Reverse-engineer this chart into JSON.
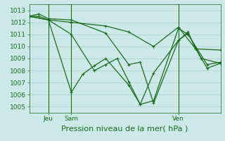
{
  "title": "Pression niveau de la mer( hPa )",
  "bg_color": "#cce8e8",
  "line_color": "#1a6b1a",
  "grid_color": "#aacccc",
  "ylim": [
    1004.5,
    1013.5
  ],
  "yticks": [
    1005,
    1006,
    1007,
    1008,
    1009,
    1010,
    1011,
    1012,
    1013
  ],
  "xlim": [
    0,
    100
  ],
  "vline_jeu": 10,
  "vline_sam": 22,
  "vline_ven": 78,
  "x_label_jeu": 10,
  "x_label_sam": 22,
  "x_label_ven": 78,
  "line1_x": [
    0,
    5,
    10,
    22,
    40,
    52,
    58,
    65,
    78,
    83,
    87,
    93,
    100
  ],
  "line1_y": [
    1012.5,
    1012.7,
    1012.3,
    1012.2,
    1011.1,
    1008.5,
    1008.7,
    1005.3,
    1010.5,
    1011.2,
    1009.8,
    1008.2,
    1008.6
  ],
  "line2_x": [
    0,
    10,
    22,
    34,
    40,
    46,
    52,
    58,
    65,
    78,
    83,
    93,
    100
  ],
  "line2_y": [
    1012.5,
    1012.2,
    1011.0,
    1008.0,
    1008.5,
    1009.0,
    1007.1,
    1005.2,
    1005.5,
    1011.5,
    1011.0,
    1008.5,
    1008.7
  ],
  "line3_x": [
    0,
    5,
    10,
    22,
    40,
    52,
    65,
    78,
    87,
    100
  ],
  "line3_y": [
    1012.5,
    1012.5,
    1012.2,
    1012.0,
    1011.7,
    1011.2,
    1010.0,
    1011.6,
    1009.8,
    1009.7
  ],
  "line4_x": [
    0,
    10,
    22,
    28,
    34,
    40,
    52,
    58,
    65,
    78,
    83,
    90,
    100
  ],
  "line4_y": [
    1012.5,
    1012.2,
    1006.2,
    1007.7,
    1008.4,
    1009.0,
    1006.8,
    1005.2,
    1007.8,
    1010.5,
    1011.1,
    1009.0,
    1008.6
  ],
  "tick_label_fontsize": 6.5,
  "title_fontsize": 8,
  "marker_size": 2.5,
  "line_width": 0.9
}
